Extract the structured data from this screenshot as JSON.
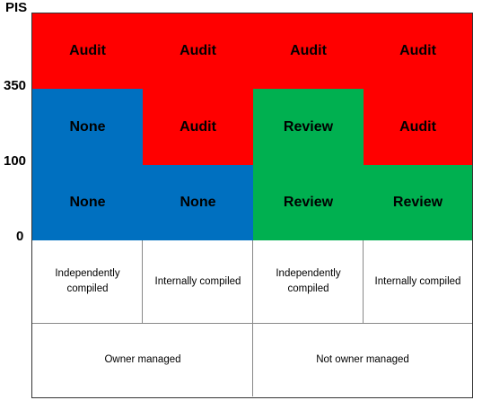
{
  "axis": {
    "title": "PIS",
    "ticks": [
      "350",
      "100",
      "0"
    ]
  },
  "matrix": {
    "rows": [
      [
        {
          "label": "Audit",
          "color": "#ff0000"
        },
        {
          "label": "Audit",
          "color": "#ff0000"
        },
        {
          "label": "Audit",
          "color": "#ff0000"
        },
        {
          "label": "Audit",
          "color": "#ff0000"
        }
      ],
      [
        {
          "label": "None",
          "color": "#0070c0"
        },
        {
          "label": "Audit",
          "color": "#ff0000"
        },
        {
          "label": "Review",
          "color": "#00b050"
        },
        {
          "label": "Audit",
          "color": "#ff0000"
        }
      ],
      [
        {
          "label": "None",
          "color": "#0070c0"
        },
        {
          "label": "None",
          "color": "#0070c0"
        },
        {
          "label": "Review",
          "color": "#00b050"
        },
        {
          "label": "Review",
          "color": "#00b050"
        }
      ]
    ]
  },
  "compilation": [
    "Independently compiled",
    "Internally compiled",
    "Independently compiled",
    "Internally compiled"
  ],
  "management": [
    "Owner managed",
    "Not owner managed"
  ]
}
